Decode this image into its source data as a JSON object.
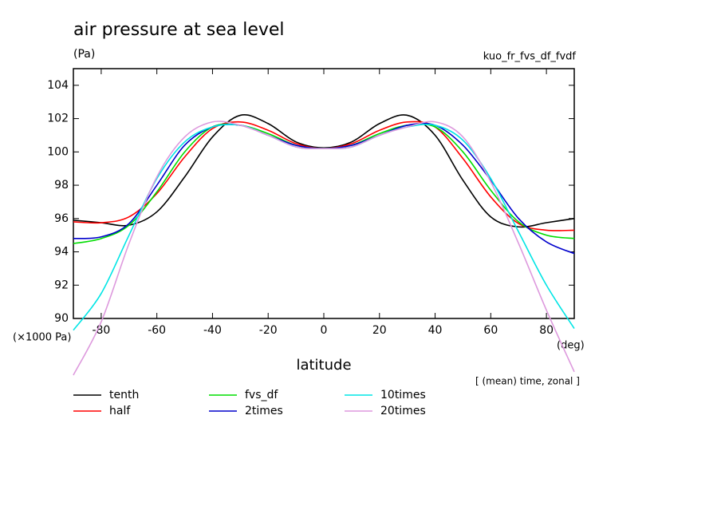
{
  "chart_data": {
    "type": "line",
    "title": "air pressure at sea level",
    "y_unit": "(Pa)",
    "subtitle": "kuo_fr_fvs_df_fvdf",
    "y_scale_label": "(×1000 Pa)",
    "x_label": "latitude",
    "x_unit": "(deg)",
    "note": "[ (mean) time, zonal ]",
    "x": [
      -90,
      -80,
      -70,
      -60,
      -50,
      -40,
      -30,
      -20,
      -10,
      0,
      10,
      20,
      30,
      40,
      50,
      60,
      70,
      80,
      90
    ],
    "xlim": [
      -90,
      90
    ],
    "xticks": [
      -80,
      -60,
      -40,
      -20,
      0,
      20,
      40,
      60,
      80
    ],
    "ylim": [
      90,
      105
    ],
    "yticks": [
      90,
      92,
      94,
      96,
      98,
      100,
      102,
      104
    ],
    "series": [
      {
        "name": "tenth",
        "color": "#000000",
        "values": [
          95.9,
          95.75,
          95.6,
          96.4,
          98.5,
          100.9,
          102.2,
          101.7,
          100.6,
          100.25,
          100.6,
          101.7,
          102.2,
          101.0,
          98.3,
          96.1,
          95.5,
          95.75,
          96.0
        ]
      },
      {
        "name": "half",
        "color": "#ff0000",
        "values": [
          95.8,
          95.75,
          96.1,
          97.5,
          99.7,
          101.4,
          101.8,
          101.3,
          100.5,
          100.2,
          100.5,
          101.3,
          101.8,
          101.5,
          99.6,
          97.3,
          95.7,
          95.3,
          95.3
        ]
      },
      {
        "name": "fvs_df",
        "color": "#00dd00",
        "values": [
          94.5,
          94.8,
          95.6,
          97.6,
          100.0,
          101.5,
          101.6,
          101.1,
          100.4,
          100.2,
          100.4,
          101.1,
          101.6,
          101.5,
          100.0,
          97.7,
          95.8,
          95.0,
          94.8
        ]
      },
      {
        "name": "2times",
        "color": "#0000cc",
        "values": [
          94.8,
          94.9,
          95.7,
          98.0,
          100.4,
          101.5,
          101.6,
          101.0,
          100.4,
          100.2,
          100.4,
          101.0,
          101.6,
          101.6,
          100.4,
          98.3,
          96.0,
          94.6,
          93.9
        ]
      },
      {
        "name": "10times",
        "color": "#00e5e5",
        "values": [
          89.3,
          91.5,
          95.0,
          98.4,
          100.6,
          101.5,
          101.6,
          101.0,
          100.3,
          100.2,
          100.3,
          101.0,
          101.5,
          101.6,
          100.7,
          98.4,
          95.2,
          92.0,
          89.4
        ]
      },
      {
        "name": "20times",
        "color": "#dd99dd",
        "values": [
          86.6,
          89.8,
          94.5,
          98.5,
          100.9,
          101.8,
          101.6,
          101.0,
          100.3,
          100.2,
          100.3,
          101.0,
          101.5,
          101.8,
          100.9,
          98.2,
          94.5,
          90.5,
          86.8
        ]
      }
    ]
  }
}
